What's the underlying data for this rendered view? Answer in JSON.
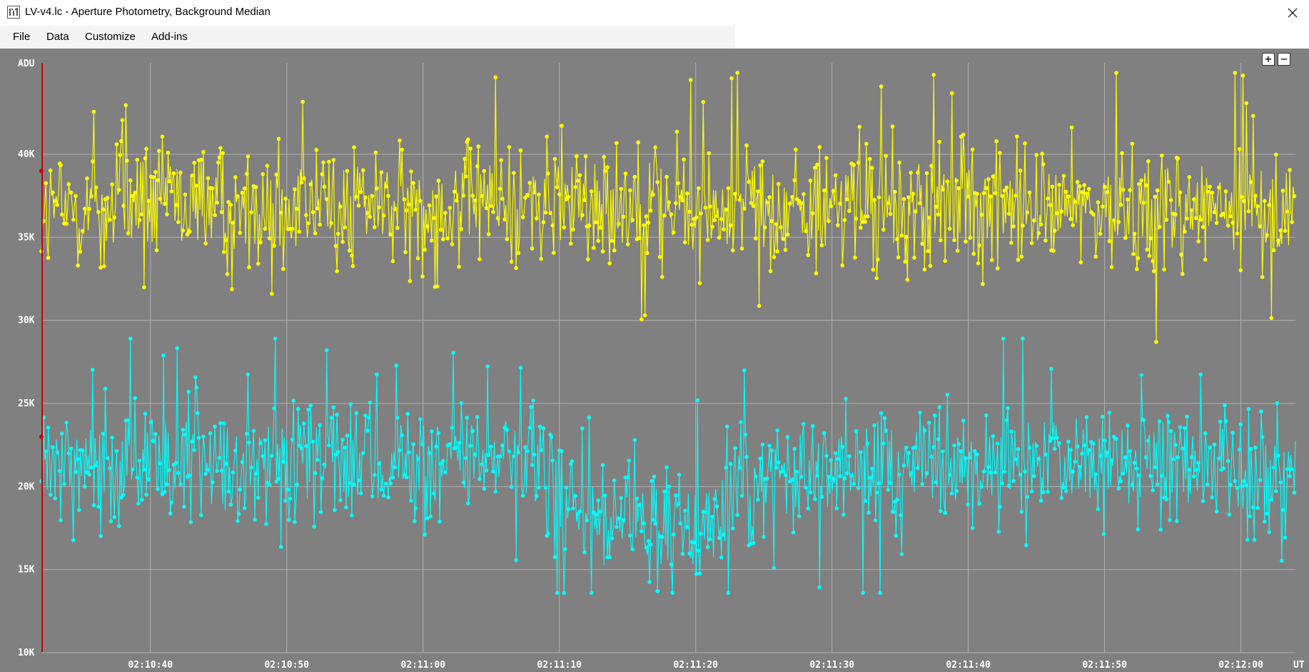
{
  "window": {
    "title": "LV-v4.lc - Aperture Photometry, Background Median",
    "close_glyph": "✕"
  },
  "menu": {
    "items": [
      "File",
      "Data",
      "Customize",
      "Add-ins"
    ]
  },
  "zoom": {
    "plus": "+",
    "minus": "−"
  },
  "colors": {
    "plot_background": "#808080",
    "grid": "#b0b0b0",
    "series_1": "#ffff00",
    "series_2": "#00ffff",
    "marker_line": "#cc0000",
    "tick_text": "#ffffff"
  },
  "chart_data": {
    "type": "line",
    "ylabel": "ADU",
    "xlabel": "UT",
    "ylim": [
      10000,
      45500
    ],
    "y_ticks": [
      {
        "value": 10000,
        "label": "10K"
      },
      {
        "value": 15000,
        "label": "15K"
      },
      {
        "value": 20000,
        "label": "20K"
      },
      {
        "value": 25000,
        "label": "25K"
      },
      {
        "value": 30000,
        "label": "30K"
      },
      {
        "value": 35000,
        "label": "35K"
      },
      {
        "value": 40000,
        "label": "40K"
      }
    ],
    "x_range": [
      "02:10:32",
      "02:12:04"
    ],
    "x_ticks": [
      "02:10:40",
      "02:10:50",
      "02:11:00",
      "02:11:10",
      "02:11:20",
      "02:11:30",
      "02:11:40",
      "02:11:50",
      "02:12:00"
    ],
    "grid": true,
    "markers": "points",
    "series": [
      {
        "color": "#ffff00",
        "x": [
          "02:10:32",
          "02:10:36",
          "02:10:40",
          "02:10:44",
          "02:10:48",
          "02:10:52",
          "02:10:56",
          "02:11:00",
          "02:11:04",
          "02:11:08",
          "02:11:12",
          "02:11:16",
          "02:11:20",
          "02:11:24",
          "02:11:28",
          "02:11:32",
          "02:11:36",
          "02:11:40",
          "02:11:44",
          "02:11:48",
          "02:11:52",
          "02:11:56",
          "02:12:00",
          "02:12:04"
        ],
        "y": [
          36500,
          36800,
          37000,
          36700,
          36600,
          36900,
          37000,
          36800,
          37100,
          37000,
          36900,
          37100,
          36800,
          36700,
          36800,
          37000,
          36900,
          37100,
          37000,
          36700,
          36900,
          36800,
          36600,
          36800
        ],
        "scatter_min": 28700,
        "scatter_max": 44900
      },
      {
        "color": "#00ffff",
        "x": [
          "02:10:32",
          "02:10:36",
          "02:10:40",
          "02:10:44",
          "02:10:48",
          "02:10:52",
          "02:10:56",
          "02:11:00",
          "02:11:04",
          "02:11:08",
          "02:11:10",
          "02:11:12",
          "02:11:14",
          "02:11:16",
          "02:11:18",
          "02:11:20",
          "02:11:22",
          "02:11:24",
          "02:11:28",
          "02:11:32",
          "02:11:36",
          "02:11:40",
          "02:11:44",
          "02:11:48",
          "02:11:52",
          "02:11:56",
          "02:12:00",
          "02:12:04"
        ],
        "y": [
          21000,
          21500,
          21800,
          21200,
          21000,
          21400,
          21500,
          21300,
          21400,
          21600,
          19500,
          17800,
          17400,
          17600,
          17300,
          17800,
          18600,
          20000,
          21200,
          21400,
          21200,
          21000,
          21600,
          21800,
          21500,
          21300,
          20800,
          21000
        ],
        "scatter_min": 13600,
        "scatter_max": 28900
      }
    ]
  }
}
